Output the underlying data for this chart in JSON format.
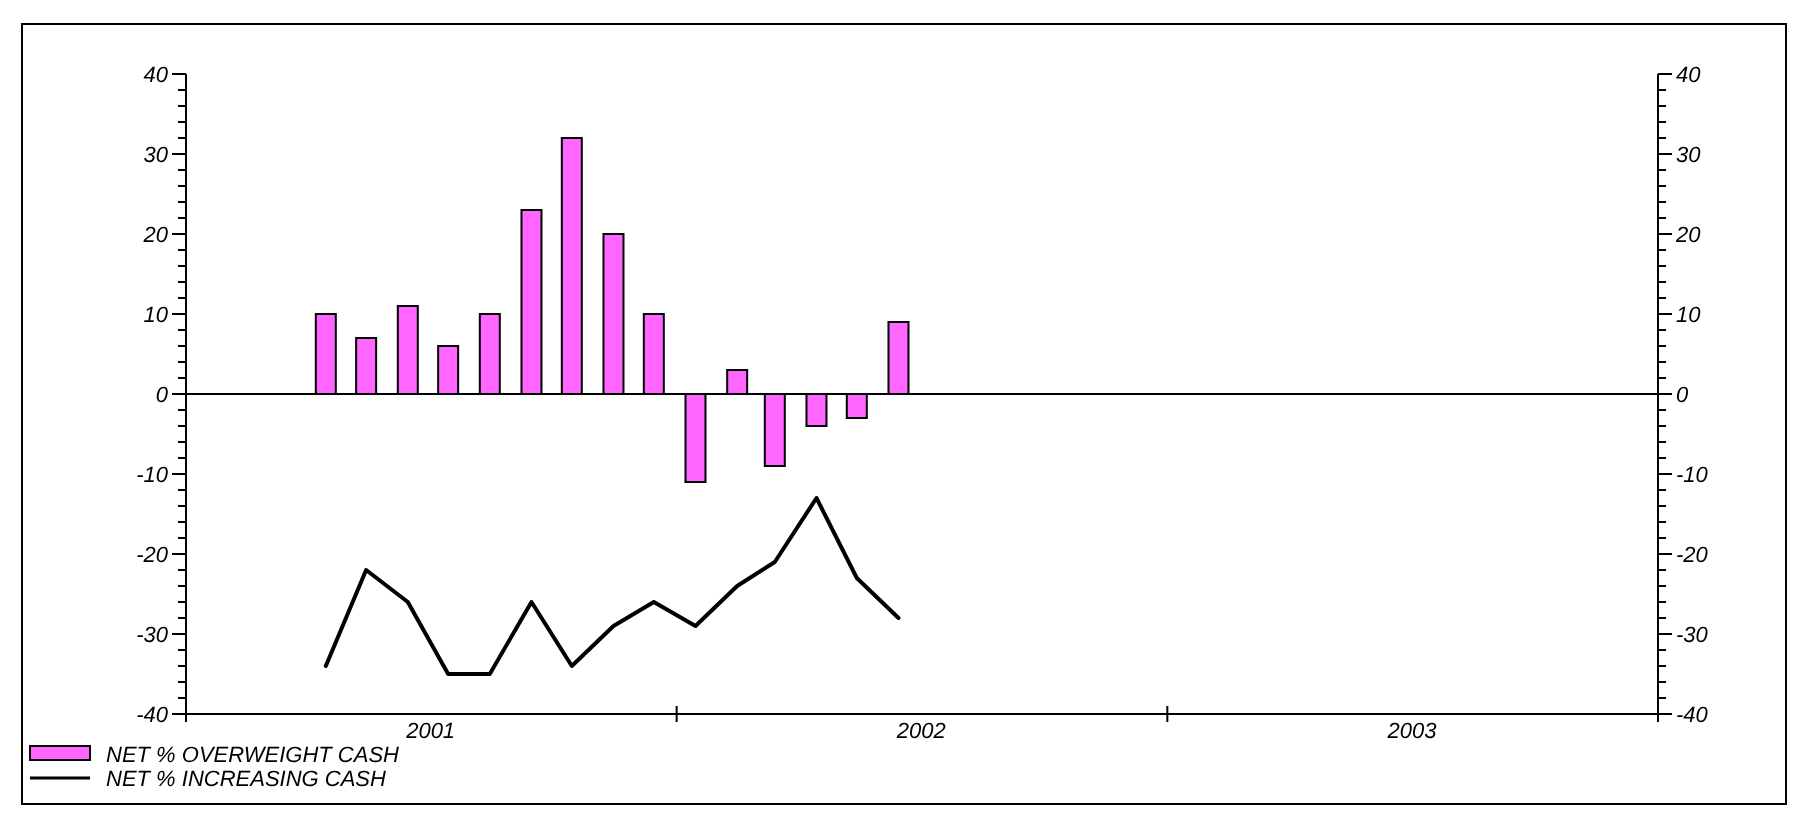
{
  "chart_data": {
    "type": "bar",
    "x": [
      "2001-04-15",
      "2001-05-15",
      "2001-06-15",
      "2001-07-15",
      "2001-08-15",
      "2001-09-15",
      "2001-10-15",
      "2001-11-15",
      "2001-12-15",
      "2002-01-15",
      "2002-02-15",
      "2002-03-15",
      "2002-04-15",
      "2002-05-15",
      "2002-06-15"
    ],
    "series": [
      {
        "name": "NET % OVERWEIGHT CASH",
        "color": "#ff66ff",
        "values": [
          10,
          7,
          11,
          6,
          10,
          23,
          32,
          20,
          10,
          -11,
          3,
          -9,
          -4,
          -3,
          9
        ]
      },
      {
        "name": "NET % INCREASING CASH",
        "type": "line",
        "color": "#000000",
        "values": [
          -34,
          -22,
          -26,
          -35,
          -35,
          -26,
          -34,
          -29,
          -26,
          -29,
          -24,
          -21,
          -13,
          -23,
          -28
        ]
      }
    ],
    "xlim": [
      "2001-01-01",
      "2004-01-01"
    ],
    "xticks": [
      {
        "value": "2001-01-01",
        "label": null
      },
      {
        "value": "2001-07-02",
        "label": "2001"
      },
      {
        "value": "2002-01-01",
        "label": null
      },
      {
        "value": "2002-07-02",
        "label": "2002"
      },
      {
        "value": "2003-01-01",
        "label": null
      },
      {
        "value": "2003-07-02",
        "label": "2003"
      },
      {
        "value": "2004-01-01",
        "label": null
      }
    ],
    "ylim": [
      -40,
      40
    ],
    "yticks": [
      -40,
      {
        "value": -38,
        "label": null
      },
      {
        "value": -36,
        "label": null
      },
      {
        "value": -34,
        "label": null
      },
      {
        "value": -32,
        "label": null
      },
      -30,
      {
        "value": -28,
        "label": null
      },
      {
        "value": -26,
        "label": null
      },
      {
        "value": -24,
        "label": null
      },
      {
        "value": -22,
        "label": null
      },
      -20,
      {
        "value": -18,
        "label": null
      },
      {
        "value": -16,
        "label": null
      },
      {
        "value": -14,
        "label": null
      },
      {
        "value": -12,
        "label": null
      },
      -10,
      {
        "value": -8,
        "label": null
      },
      {
        "value": -6,
        "label": null
      },
      {
        "value": -4,
        "label": null
      },
      {
        "value": -2,
        "label": null
      },
      0,
      {
        "value": 2,
        "label": null
      },
      {
        "value": 4,
        "label": null
      },
      {
        "value": 6,
        "label": null
      },
      {
        "value": 8,
        "label": null
      },
      10,
      {
        "value": 12,
        "label": null
      },
      {
        "value": 14,
        "label": null
      },
      {
        "value": 16,
        "label": null
      },
      {
        "value": 18,
        "label": null
      },
      20,
      {
        "value": 22,
        "label": null
      },
      {
        "value": 24,
        "label": null
      },
      {
        "value": 26,
        "label": null
      },
      {
        "value": 28,
        "label": null
      },
      30,
      {
        "value": 32,
        "label": null
      },
      {
        "value": 34,
        "label": null
      },
      {
        "value": 36,
        "label": null
      },
      {
        "value": 38,
        "label": null
      },
      40
    ],
    "y2lim": [
      -40,
      40
    ],
    "y2ticks": [
      -40,
      {
        "value": -38,
        "label": null
      },
      {
        "value": -36,
        "label": null
      },
      {
        "value": -34,
        "label": null
      },
      {
        "value": -32,
        "label": null
      },
      -30,
      {
        "value": -28,
        "label": null
      },
      {
        "value": -26,
        "label": null
      },
      {
        "value": -24,
        "label": null
      },
      {
        "value": -22,
        "label": null
      },
      -20,
      {
        "value": -18,
        "label": null
      },
      {
        "value": -16,
        "label": null
      },
      {
        "value": -14,
        "label": null
      },
      {
        "value": -12,
        "label": null
      },
      -10,
      {
        "value": -8,
        "label": null
      },
      {
        "value": -6,
        "label": null
      },
      {
        "value": -4,
        "label": null
      },
      {
        "value": -2,
        "label": null
      },
      0,
      {
        "value": 2,
        "label": null
      },
      {
        "value": 4,
        "label": null
      },
      {
        "value": 6,
        "label": null
      },
      {
        "value": 8,
        "label": null
      },
      10,
      {
        "value": 12,
        "label": null
      },
      {
        "value": 14,
        "label": null
      },
      {
        "value": 16,
        "label": null
      },
      {
        "value": 18,
        "label": null
      },
      20,
      {
        "value": 22,
        "label": null
      },
      {
        "value": 24,
        "label": null
      },
      {
        "value": 26,
        "label": null
      },
      {
        "value": 28,
        "label": null
      },
      30,
      {
        "value": 32,
        "label": null
      },
      {
        "value": 34,
        "label": null
      },
      {
        "value": 36,
        "label": null
      },
      {
        "value": 38,
        "label": null
      },
      40
    ],
    "legend": "bottom left"
  }
}
